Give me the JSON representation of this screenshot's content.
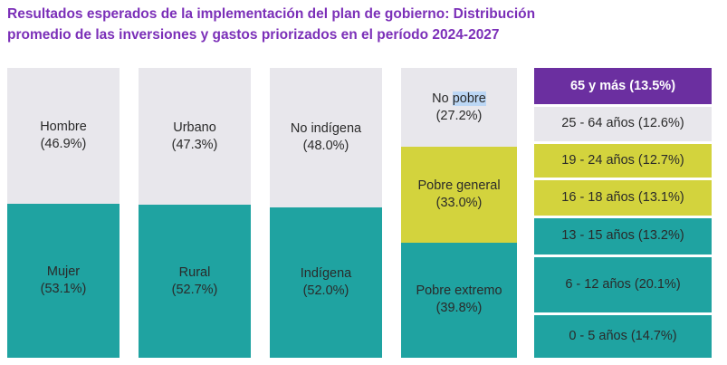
{
  "title_line1": "Resultados esperados de la implementación del plan de gobierno: Distribución",
  "title_line2": "promedio de las inversiones y gastos priorizados en el período 2024-2027",
  "colors": {
    "gray": "#e8e7ec",
    "teal": "#1fa3a1",
    "yellow_green": "#d3d33d",
    "purple": "#6b2fa0",
    "title": "#7b2fb8"
  },
  "chart_data": {
    "type": "stacked-bar-100",
    "columns": [
      {
        "segments": [
          {
            "label": "Hombre",
            "pct": "(46.9%)",
            "value": 46.9,
            "color": "gray"
          },
          {
            "label": "Mujer",
            "pct": "(53.1%)",
            "value": 53.1,
            "color": "teal"
          }
        ]
      },
      {
        "segments": [
          {
            "label": "Urbano",
            "pct": "(47.3%)",
            "value": 47.3,
            "color": "gray"
          },
          {
            "label": "Rural",
            "pct": "(52.7%)",
            "value": 52.7,
            "color": "teal"
          }
        ]
      },
      {
        "segments": [
          {
            "label": "No indígena",
            "pct": "(48.0%)",
            "value": 48.0,
            "color": "gray"
          },
          {
            "label": "Indígena",
            "pct": "(52.0%)",
            "value": 52.0,
            "color": "teal"
          }
        ]
      },
      {
        "segments": [
          {
            "label_pre": "No",
            "label_hl": "pobre",
            "pct": "(27.2%)",
            "value": 27.2,
            "color": "gray"
          },
          {
            "label": "Pobre general",
            "pct": "(33.0%)",
            "value": 33.0,
            "color": "yellow_green"
          },
          {
            "label": "Pobre extremo",
            "pct": "(39.8%)",
            "value": 39.8,
            "color": "teal"
          }
        ]
      },
      {
        "segments": [
          {
            "label": "65 y más (13.5%)",
            "value": 13.5,
            "color": "purple"
          },
          {
            "label": "25 - 64 años (12.6%)",
            "value": 12.6,
            "color": "gray"
          },
          {
            "label": "19 - 24 años (12.7%)",
            "value": 12.7,
            "color": "yellow_green"
          },
          {
            "label": "16 - 18 años (13.1%)",
            "value": 13.1,
            "color": "yellow_green"
          },
          {
            "label": "13 - 15 años (13.2%)",
            "value": 13.2,
            "color": "teal"
          },
          {
            "label": "6 - 12 años (20.1%)",
            "value": 20.1,
            "color": "teal"
          },
          {
            "label": "0 - 5 años (14.7%)",
            "value": 14.7,
            "color": "teal"
          }
        ]
      }
    ]
  }
}
